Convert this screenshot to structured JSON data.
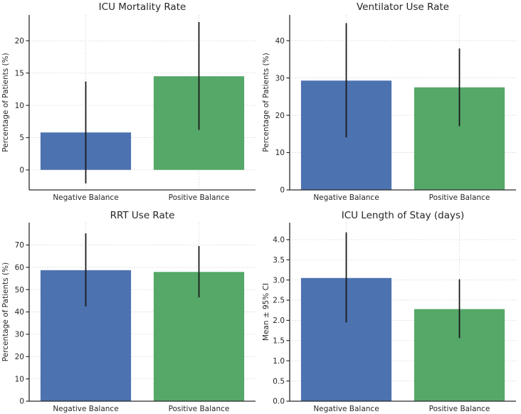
{
  "figure": {
    "background": "#ffffff",
    "bar_colors": [
      "#4c72b0",
      "#55a868"
    ],
    "error_bar_color": "#1a1a1a",
    "grid_color": "#cccccc",
    "spine_color": "#2b2b2b",
    "text_color": "#262626"
  },
  "chart_data": [
    {
      "type": "bar",
      "title": "ICU Mortality Rate",
      "xlabel": "",
      "ylabel": "Percentage of Patients (%)",
      "categories": [
        "Negative Balance",
        "Positive Balance"
      ],
      "values": [
        5.8,
        14.5
      ],
      "ci_low": [
        -2.1,
        6.2
      ],
      "ci_high": [
        13.7,
        22.9
      ],
      "yticks": [
        0,
        5,
        10,
        15,
        20
      ],
      "ytick_labels": [
        "0",
        "5",
        "10",
        "15",
        "20"
      ],
      "ylim": [
        -3.1,
        24.0
      ],
      "grid": true,
      "legend": null
    },
    {
      "type": "bar",
      "title": "Ventilator Use Rate",
      "xlabel": "",
      "ylabel": "Percentage of Patients (%)",
      "categories": [
        "Negative Balance",
        "Positive Balance"
      ],
      "values": [
        29.3,
        27.5
      ],
      "ci_low": [
        14.1,
        17.1
      ],
      "ci_high": [
        44.7,
        37.9
      ],
      "yticks": [
        0,
        10,
        20,
        30,
        40
      ],
      "ytick_labels": [
        "0",
        "10",
        "20",
        "30",
        "40"
      ],
      "ylim": [
        0,
        46.9
      ],
      "grid": true,
      "legend": null
    },
    {
      "type": "bar",
      "title": "RRT Use Rate",
      "xlabel": "",
      "ylabel": "Percentage of Patients (%)",
      "categories": [
        "Negative Balance",
        "Positive Balance"
      ],
      "values": [
        58.7,
        57.9
      ],
      "ci_low": [
        42.5,
        46.5
      ],
      "ci_high": [
        75.2,
        69.5
      ],
      "yticks": [
        0,
        10,
        20,
        30,
        40,
        50,
        60,
        70
      ],
      "ytick_labels": [
        "0",
        "10",
        "20",
        "30",
        "40",
        "50",
        "60",
        "70"
      ],
      "ylim": [
        0,
        80.0
      ],
      "grid": true,
      "legend": null
    },
    {
      "type": "bar",
      "title": "ICU Length of Stay (days)",
      "xlabel": "",
      "ylabel": "Mean ± 95% CI",
      "categories": [
        "Negative Balance",
        "Positive Balance"
      ],
      "values": [
        3.05,
        2.28
      ],
      "ci_low": [
        1.95,
        1.56
      ],
      "ci_high": [
        4.18,
        3.02
      ],
      "yticks": [
        0,
        0.5,
        1.0,
        1.5,
        2.0,
        2.5,
        3.0,
        3.5,
        4.0
      ],
      "ytick_labels": [
        "0.0",
        "0.5",
        "1.0",
        "1.5",
        "2.0",
        "2.5",
        "3.0",
        "3.5",
        "4.0"
      ],
      "ylim": [
        0,
        4.42
      ],
      "grid": true,
      "legend": null
    }
  ]
}
